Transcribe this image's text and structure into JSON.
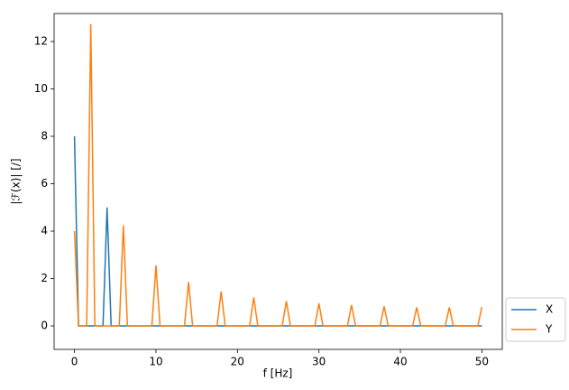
{
  "chart_data": {
    "type": "line",
    "xlabel": "f [Hz]",
    "ylabel": "|ℱ(x)| [/]",
    "xlim": [
      -2.5,
      52.5
    ],
    "xticks": [
      0,
      10,
      20,
      30,
      40,
      50
    ],
    "ylim": [
      -0.99,
      13.18
    ],
    "yticks": [
      0,
      2,
      4,
      6,
      8,
      10,
      12
    ],
    "legend": "outside-lower-right",
    "series": [
      {
        "name": "X",
        "color": "#1f77b4",
        "x": [
          0,
          0.5,
          3.5,
          4,
          4.5,
          50
        ],
        "values": [
          8,
          0,
          0,
          5,
          0,
          0
        ]
      },
      {
        "name": "Y",
        "color": "#ff7f0e",
        "x": [
          0,
          0.5,
          1.5,
          2,
          2.5,
          5.5,
          6,
          6.5,
          9.5,
          10,
          10.5,
          13.5,
          14,
          14.5,
          17.5,
          18,
          18.5,
          21.5,
          22,
          22.5,
          25.5,
          26,
          26.5,
          29.5,
          30,
          30.5,
          33.5,
          34,
          34.5,
          37.5,
          38,
          38.5,
          41.5,
          42,
          42.5,
          45.5,
          46,
          46.5,
          49.5,
          50
        ],
        "values": [
          4,
          0,
          0,
          12.73,
          0,
          0,
          4.24,
          0,
          0,
          2.55,
          0,
          0,
          1.85,
          0,
          0,
          1.45,
          0,
          0,
          1.2,
          0,
          0,
          1.05,
          0,
          0,
          0.95,
          0,
          0,
          0.88,
          0,
          0,
          0.83,
          0,
          0,
          0.78,
          0,
          0,
          0.78,
          0,
          0,
          0.8
        ]
      }
    ]
  }
}
